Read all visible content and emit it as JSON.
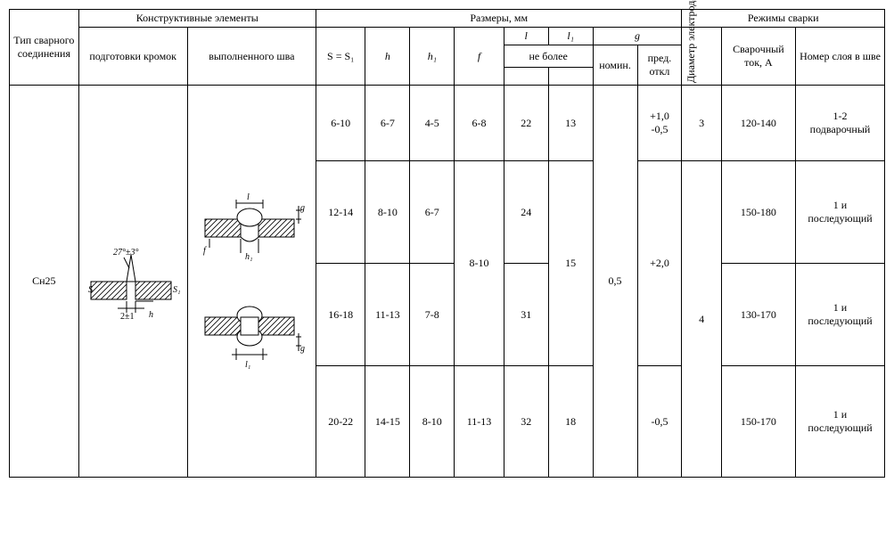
{
  "header": {
    "col_type": "Тип сварного соединения",
    "col_construct": "Конструктивные элементы",
    "col_edge_prep": "подготовки кромок",
    "col_weld_done": "выполненного шва",
    "col_dims": "Размеры, мм",
    "col_S": "S = S₁",
    "col_h": "h",
    "col_h1": "h₁",
    "col_f": "f",
    "col_l": "l",
    "col_l1": "l₁",
    "col_nomore": "не более",
    "col_g": "g",
    "col_nomin": "номин.",
    "col_tol": "пред. откл",
    "col_diam": "Диаметр электрода, мм",
    "col_modes": "Режимы сварки",
    "col_current": "Сварочный ток, А",
    "col_layer": "Номер слоя в шве"
  },
  "body": {
    "type_label": "Сн25",
    "diag1": {
      "angle": "27°±3°",
      "s_label": "S",
      "s1_label": "S₁",
      "dim_b": "2±1",
      "dim_h": "h"
    },
    "diag2": {
      "l_label": "l",
      "g_label": "g",
      "f_label": "f",
      "h1_label": "h₁"
    },
    "diag3": {
      "l1_label": "l₁",
      "g_label": "g"
    },
    "rows": [
      {
        "S": "6-10",
        "h": "6-7",
        "h1": "4-5",
        "f": "6-8",
        "l": "22",
        "l1": "13",
        "tol": "+1,0\n-0,5",
        "diam": "3",
        "current": "120-140",
        "layer": "1-2\nподварочный"
      },
      {
        "S": "12-14",
        "h": "8-10",
        "h1": "6-7",
        "l": "24",
        "current": "150-180",
        "layer": "1 и\nпоследующий"
      },
      {
        "S": "16-18",
        "h": "11-13",
        "h1": "7-8",
        "l": "31",
        "current": "130-170",
        "layer": "1 и\nпоследующий"
      },
      {
        "S": "20-22",
        "h": "14-15",
        "h1": "8-10",
        "f": "11-13",
        "l": "32",
        "l1": "18",
        "tol": "-0,5",
        "current": "150-170",
        "layer": "1 и\nпоследующий"
      }
    ],
    "shared": {
      "f_mid": "8-10",
      "l1_mid": "15",
      "nomin": "0,5",
      "tol_mid": "+2,0",
      "diam_mid": "4"
    }
  },
  "style": {
    "border_color": "#000000",
    "bg": "#ffffff",
    "font": "Times New Roman",
    "font_size_pt": 12
  }
}
